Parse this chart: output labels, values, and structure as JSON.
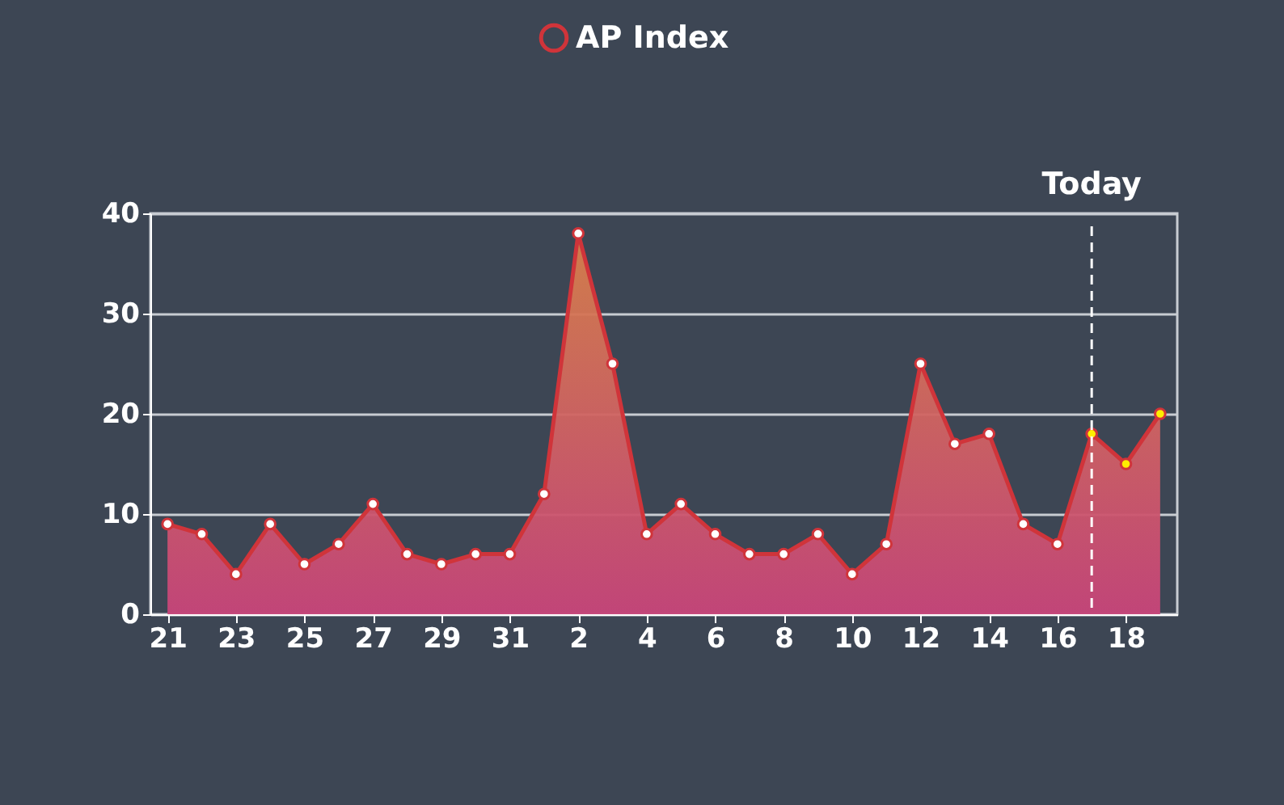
{
  "chart_data": {
    "type": "area",
    "categories": [
      "21",
      null,
      "23",
      null,
      "25",
      null,
      "27",
      null,
      "29",
      null,
      "31",
      null,
      "2",
      null,
      "4",
      null,
      "6",
      null,
      "8",
      null,
      "10",
      null,
      "12",
      null,
      "14",
      null,
      "16",
      null,
      "18",
      null
    ],
    "series": [
      {
        "name": "AP Index",
        "color": "#d0343a",
        "values": [
          9,
          8,
          4,
          9,
          5,
          7,
          11,
          6,
          5,
          6,
          6,
          12,
          38,
          25,
          8,
          11,
          8,
          6,
          6,
          8,
          4,
          7,
          25,
          17,
          18,
          9,
          7,
          18,
          15,
          20
        ],
        "colors": [
          "#ffffff",
          "#ffffff",
          "#ffffff",
          "#ffffff",
          "#ffffff",
          "#ffffff",
          "#ffffff",
          "#ffffff",
          "#ffffff",
          "#ffffff",
          "#ffffff",
          "#ffffff",
          "#ffffff",
          "#ffffff",
          "#ffffff",
          "#ffffff",
          "#ffffff",
          "#ffffff",
          "#ffffff",
          "#ffffff",
          "#ffffff",
          "#ffffff",
          "#ffffff",
          "#ffffff",
          "#ffffff",
          "#ffffff",
          "#ffffff",
          "#ffee00",
          "#ffee00",
          "#ffee00"
        ]
      }
    ],
    "ylim": [
      0,
      40
    ],
    "yticks": [
      0,
      10,
      20,
      30,
      40
    ],
    "grid": "y",
    "legend": "top",
    "marker": "circle",
    "line_style": "solid",
    "annotations": [
      "Today"
    ]
  }
}
